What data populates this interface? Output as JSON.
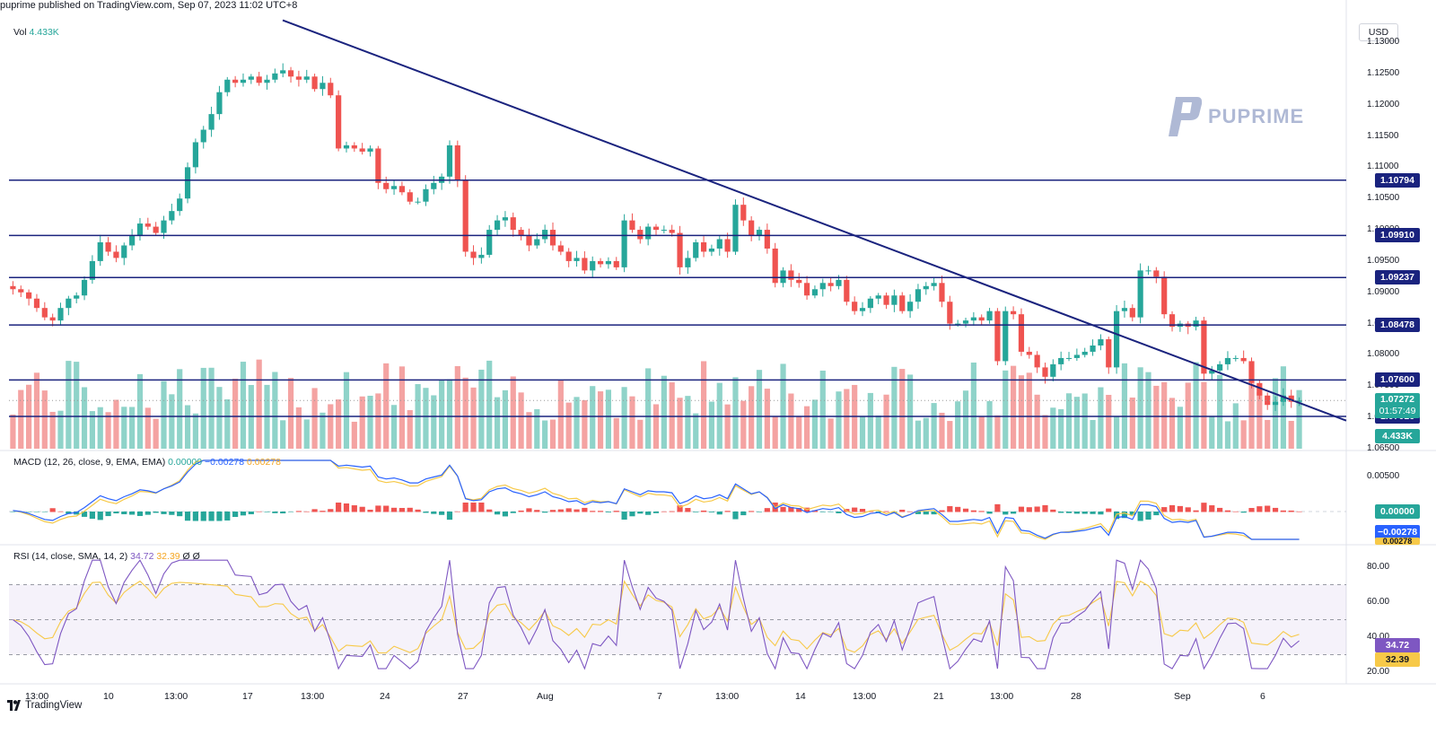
{
  "publisher": "puprime published on TradingView.com, Sep 07, 2023 11:02 UTC+8",
  "currency": "USD",
  "watermark": "PUPRIME",
  "footer_logo": "TradingView",
  "volume": {
    "label": "Vol",
    "value": "4.433K",
    "tag": "4.433K"
  },
  "macd": {
    "label": "MACD (12, 26, close, 9, EMA, EMA)",
    "hist": "0.00000",
    "macd": "−0.00278",
    "signal": "0.00278",
    "axis": [
      "0.00500",
      "0.00000"
    ],
    "tag_hist": "0.00000",
    "tag_macd": "−0.00278",
    "tag_signal": "0.00278"
  },
  "rsi": {
    "label": "RSI (14, close, SMA, 14, 2)",
    "rsi": "34.72",
    "sma": "32.39",
    "extra": "Ø Ø",
    "axis": [
      "80.00",
      "60.00",
      "40.00",
      "20.00"
    ],
    "tag_rsi": "34.72",
    "tag_sma": "32.39"
  },
  "price_axis": [
    "1.13000",
    "1.12500",
    "1.12000",
    "1.11500",
    "1.11000",
    "1.10500",
    "1.10000",
    "1.09500",
    "1.09000",
    "1.08500",
    "1.08000",
    "1.07500",
    "1.07000",
    "1.06500"
  ],
  "levels": [
    {
      "price": 1.10794,
      "label": "1.10794"
    },
    {
      "price": 1.0991,
      "label": "1.09910"
    },
    {
      "price": 1.09237,
      "label": "1.09237"
    },
    {
      "price": 1.08478,
      "label": "1.08478"
    },
    {
      "price": 1.076,
      "label": "1.07600"
    },
    {
      "price": 1.07016,
      "label": "1.07016"
    }
  ],
  "current_price": {
    "label": "1.07272",
    "countdown": "01:57:49"
  },
  "time_axis": [
    "13:00",
    "10",
    "13:00",
    "17",
    "13:00",
    "24",
    "27",
    "Aug",
    "7",
    "13:00",
    "14",
    "13:00",
    "21",
    "13:00",
    "28",
    "Sep",
    "6"
  ],
  "chart_data": {
    "type": "candlestick",
    "symbol_note": "",
    "price_range": [
      1.065,
      1.131
    ],
    "trendline": [
      [
        1.1335,
        0
      ],
      [
        1.0695,
        1
      ]
    ],
    "closes": [
      1.0905,
      1.09,
      1.089,
      1.0875,
      1.086,
      1.0855,
      1.0875,
      1.089,
      1.0895,
      1.092,
      1.095,
      1.098,
      1.0965,
      1.0955,
      1.0975,
      1.099,
      1.101,
      1.1005,
      1.0995,
      1.1015,
      1.103,
      1.105,
      1.11,
      1.114,
      1.116,
      1.1185,
      1.122,
      1.124,
      1.1235,
      1.124,
      1.1245,
      1.1235,
      1.124,
      1.125,
      1.1255,
      1.1245,
      1.124,
      1.1245,
      1.1225,
      1.1235,
      1.1215,
      1.113,
      1.1135,
      1.113,
      1.1125,
      1.113,
      1.1075,
      1.1065,
      1.107,
      1.106,
      1.1045,
      1.1045,
      1.1065,
      1.1075,
      1.1085,
      1.1135,
      1.108,
      1.0965,
      1.0955,
      1.096,
      1.1,
      1.1015,
      1.102,
      1.1,
      1.099,
      1.0975,
      1.0985,
      1.1,
      1.0975,
      1.0965,
      1.095,
      1.0955,
      1.0935,
      1.095,
      1.0945,
      1.095,
      1.094,
      1.1015,
      1.1,
      1.0985,
      1.1005,
      1.1,
      1.1,
      1.0995,
      1.094,
      1.0955,
      1.098,
      1.0965,
      1.097,
      1.0985,
      1.0965,
      1.104,
      1.1015,
      1.099,
      1.1,
      1.097,
      1.0915,
      1.0935,
      1.092,
      1.0915,
      1.0895,
      1.0905,
      1.0915,
      1.091,
      1.092,
      1.0885,
      1.087,
      1.0875,
      1.089,
      1.0895,
      1.088,
      1.0895,
      1.087,
      1.0885,
      1.0905,
      1.091,
      1.0915,
      1.0885,
      1.085,
      1.085,
      1.0855,
      1.086,
      1.0855,
      1.087,
      1.079,
      1.087,
      1.0865,
      1.0805,
      1.08,
      1.078,
      1.0765,
      1.0785,
      1.0795,
      1.0795,
      1.08,
      1.0805,
      1.0815,
      1.0825,
      1.078,
      1.087,
      1.0875,
      1.086,
      1.0935,
      1.0935,
      1.0925,
      1.0865,
      1.0845,
      1.085,
      1.0845,
      1.0855,
      1.077,
      1.0775,
      1.0785,
      1.0795,
      1.0795,
      1.079,
      1.0755,
      1.0735,
      1.072,
      1.0725,
      1.0735,
      1.0725,
      1.0727
    ]
  }
}
